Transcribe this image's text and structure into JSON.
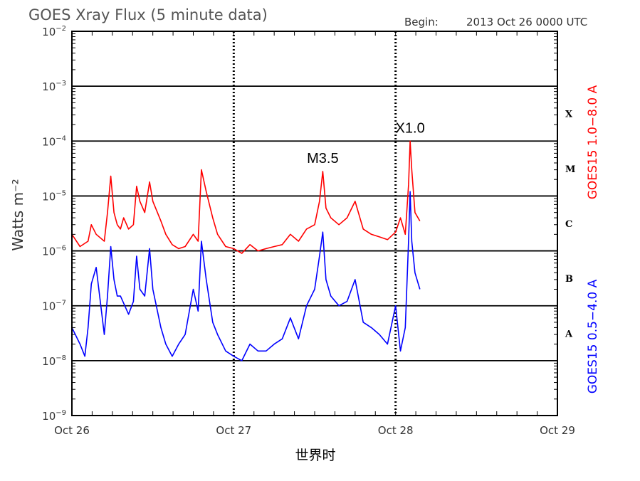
{
  "header": {
    "title": "GOES Xray Flux (5 minute data)",
    "begin_label": "Begin:",
    "begin_value": "2013 Oct 26 0000 UTC"
  },
  "chart_data": {
    "type": "line",
    "title": "GOES Xray Flux (5 minute data)",
    "xlabel": "世界时",
    "ylabel": "Watts m⁻²",
    "y_scale": "log",
    "ylim": [
      1e-09,
      0.01
    ],
    "xlim": [
      0,
      3
    ],
    "x_unit": "days since 2013 Oct 26 0000 UTC",
    "x_ticks": [
      {
        "value": 0,
        "label": "Oct 26"
      },
      {
        "value": 1,
        "label": "Oct 27"
      },
      {
        "value": 2,
        "label": "Oct 28"
      },
      {
        "value": 3,
        "label": "Oct 29"
      }
    ],
    "y_ticks": [
      {
        "exp": -9,
        "label": "10",
        "sup": "−9"
      },
      {
        "exp": -8,
        "label": "10",
        "sup": "−8"
      },
      {
        "exp": -7,
        "label": "10",
        "sup": "−7"
      },
      {
        "exp": -6,
        "label": "10",
        "sup": "−6"
      },
      {
        "exp": -5,
        "label": "10",
        "sup": "−5"
      },
      {
        "exp": -4,
        "label": "10",
        "sup": "−4"
      },
      {
        "exp": -3,
        "label": "10",
        "sup": "−3"
      },
      {
        "exp": -2,
        "label": "10",
        "sup": "−2"
      }
    ],
    "flare_classes": [
      {
        "label": "A",
        "exp": -8
      },
      {
        "label": "B",
        "exp": -7
      },
      {
        "label": "C",
        "exp": -6
      },
      {
        "label": "M",
        "exp": -5
      },
      {
        "label": "X",
        "exp": -4
      }
    ],
    "grid_lines_exp": [
      -8,
      -7,
      -6,
      -5,
      -4,
      -3
    ],
    "annotations": [
      {
        "text": "M3.5",
        "x": 1.55,
        "y": 2.8e-05
      },
      {
        "text": "X1.0",
        "x": 2.09,
        "y": 0.0001
      }
    ],
    "series": [
      {
        "name": "GOES15 1.0−8.0 A",
        "color": "#ff0000",
        "x": [
          0.0,
          0.05,
          0.1,
          0.12,
          0.15,
          0.2,
          0.22,
          0.24,
          0.26,
          0.28,
          0.3,
          0.32,
          0.35,
          0.38,
          0.4,
          0.42,
          0.45,
          0.48,
          0.5,
          0.55,
          0.58,
          0.62,
          0.66,
          0.7,
          0.75,
          0.78,
          0.8,
          0.83,
          0.87,
          0.9,
          0.95,
          1.0,
          1.05,
          1.1,
          1.15,
          1.2,
          1.25,
          1.3,
          1.35,
          1.4,
          1.45,
          1.5,
          1.53,
          1.55,
          1.57,
          1.6,
          1.65,
          1.7,
          1.75,
          1.8,
          1.85,
          1.9,
          1.95,
          2.0,
          2.03,
          2.06,
          2.08,
          2.09,
          2.1,
          2.12,
          2.15
        ],
        "y": [
          2e-06,
          1.2e-06,
          1.5e-06,
          3e-06,
          2e-06,
          1.5e-06,
          5e-06,
          2.3e-05,
          5e-06,
          3e-06,
          2.5e-06,
          4e-06,
          2.5e-06,
          3e-06,
          1.5e-05,
          8e-06,
          5e-06,
          1.8e-05,
          8e-06,
          3.5e-06,
          2e-06,
          1.3e-06,
          1.1e-06,
          1.2e-06,
          2e-06,
          1.5e-06,
          3e-05,
          1.2e-05,
          4e-06,
          2e-06,
          1.2e-06,
          1.1e-06,
          9e-07,
          1.3e-06,
          1e-06,
          1.1e-06,
          1.2e-06,
          1.3e-06,
          2e-06,
          1.5e-06,
          2.5e-06,
          3e-06,
          8e-06,
          2.8e-05,
          6e-06,
          4e-06,
          3e-06,
          4e-06,
          8e-06,
          2.5e-06,
          2e-06,
          1.8e-06,
          1.6e-06,
          2.2e-06,
          4e-06,
          2e-06,
          1.6e-05,
          0.0001,
          3e-05,
          5e-06,
          3.5e-06
        ]
      },
      {
        "name": "GOES15 0.5−4.0 A",
        "color": "#0000ff",
        "x": [
          0.0,
          0.05,
          0.08,
          0.1,
          0.12,
          0.15,
          0.2,
          0.22,
          0.24,
          0.26,
          0.28,
          0.3,
          0.35,
          0.38,
          0.4,
          0.42,
          0.45,
          0.48,
          0.5,
          0.55,
          0.58,
          0.62,
          0.66,
          0.7,
          0.75,
          0.78,
          0.8,
          0.83,
          0.87,
          0.9,
          0.95,
          1.0,
          1.05,
          1.1,
          1.15,
          1.2,
          1.25,
          1.3,
          1.35,
          1.4,
          1.45,
          1.5,
          1.53,
          1.55,
          1.57,
          1.6,
          1.65,
          1.7,
          1.75,
          1.8,
          1.85,
          1.9,
          1.95,
          2.0,
          2.03,
          2.06,
          2.08,
          2.09,
          2.1,
          2.12,
          2.15
        ],
        "y": [
          4e-08,
          2e-08,
          1.2e-08,
          4e-08,
          2.5e-07,
          5e-07,
          3e-08,
          1.5e-07,
          1.2e-06,
          3e-07,
          1.5e-07,
          1.5e-07,
          7e-08,
          1.2e-07,
          8e-07,
          2e-07,
          1.5e-07,
          1.1e-06,
          2e-07,
          4e-08,
          2e-08,
          1.2e-08,
          2e-08,
          3e-08,
          2e-07,
          8e-08,
          1.5e-06,
          3e-07,
          5e-08,
          3e-08,
          1.5e-08,
          1.2e-08,
          1e-08,
          2e-08,
          1.5e-08,
          1.5e-08,
          2e-08,
          2.5e-08,
          6e-08,
          2.5e-08,
          1e-07,
          2e-07,
          8e-07,
          2.2e-06,
          3e-07,
          1.5e-07,
          1e-07,
          1.2e-07,
          3e-07,
          5e-08,
          4e-08,
          3e-08,
          2e-08,
          1e-07,
          1.5e-08,
          4e-08,
          1.5e-06,
          1.2e-05,
          1.5e-06,
          4e-07,
          2e-07
        ]
      }
    ]
  }
}
